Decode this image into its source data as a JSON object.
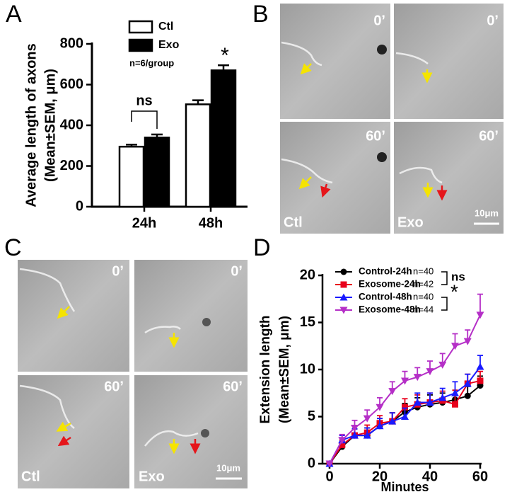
{
  "panel_letters": [
    "A",
    "B",
    "C",
    "D"
  ],
  "chart_data": [
    {
      "type": "bar",
      "y_label": [
        "Average length of axons",
        "(Mean±SEM, μm)"
      ],
      "categories": [
        "24h",
        "48h"
      ],
      "series": [
        {
          "name": "Ctl",
          "color": "#ffffff",
          "values": [
            295,
            503
          ],
          "errors": [
            10,
            20
          ]
        },
        {
          "name": "Exo",
          "color": "#000000",
          "values": [
            340,
            670
          ],
          "errors": [
            15,
            25
          ]
        }
      ],
      "legend_note": "n=6/group",
      "annotations": [
        "ns",
        "*"
      ],
      "ylim": [
        0,
        800
      ],
      "yticks": [
        0,
        200,
        400,
        600,
        800
      ]
    },
    {
      "type": "line",
      "x_label": "Minutes",
      "y_label": [
        "Extension length",
        "(Mean±SEM, μm)"
      ],
      "x": [
        0,
        5,
        10,
        15,
        20,
        25,
        30,
        35,
        40,
        45,
        50,
        55,
        60
      ],
      "series": [
        {
          "name": "Control-24h",
          "n_label": "n=40",
          "color": "#000000",
          "marker": "circle",
          "values": [
            0,
            1.8,
            3,
            3,
            4,
            4.5,
            5.5,
            6,
            6.3,
            6.5,
            6.8,
            7.2,
            8.3
          ],
          "errors": [
            0,
            0.5,
            0.7,
            0.8,
            0.8,
            0.9,
            0.9,
            1,
            1,
            1,
            1,
            1,
            1
          ]
        },
        {
          "name": "Exosome-24h",
          "n_label": "n=42",
          "color": "#e8001c",
          "marker": "square",
          "values": [
            0,
            2,
            3,
            3.3,
            4.3,
            4.5,
            6,
            6.3,
            6.5,
            6.7,
            6.3,
            8.5,
            8.8
          ],
          "errors": [
            0,
            0.5,
            0.7,
            0.8,
            0.8,
            0.9,
            0.9,
            1,
            1,
            1,
            1.5,
            1,
            1
          ]
        },
        {
          "name": "Control-48h",
          "n_label": "n=40",
          "color": "#1a1aff",
          "marker": "triangle-up",
          "values": [
            0,
            2.5,
            3,
            3,
            4,
            4.5,
            5,
            6.5,
            6.5,
            7,
            7.5,
            8.5,
            10.3
          ],
          "errors": [
            0,
            0.5,
            0.7,
            0.8,
            0.8,
            0.9,
            0.9,
            1,
            1,
            1,
            1.2,
            1,
            1.2
          ]
        },
        {
          "name": "Exosome-48h",
          "n_label": "n=44",
          "color": "#b52fc7",
          "marker": "triangle-down",
          "values": [
            0,
            2.5,
            3.8,
            4.8,
            6,
            7.7,
            8.8,
            9.2,
            9.8,
            10.5,
            12.5,
            13,
            15.8
          ],
          "errors": [
            0,
            0.6,
            0.8,
            0.9,
            1,
            1,
            1,
            1,
            1.1,
            1.2,
            1.3,
            1.2,
            2.2
          ]
        }
      ],
      "annotations": [
        "ns",
        "*"
      ],
      "xlim": [
        0,
        60
      ],
      "xticks": [
        0,
        20,
        40,
        60
      ],
      "ylim": [
        0,
        20
      ],
      "yticks": [
        0,
        5,
        10,
        15,
        20
      ]
    }
  ],
  "panel_b": {
    "time_labels": [
      "0’",
      "0’",
      "60’",
      "60’"
    ],
    "group_labels": [
      "Ctl",
      "Exo"
    ],
    "scale_bar": "10μm"
  },
  "panel_c": {
    "time_labels": [
      "0’",
      "0’",
      "60’",
      "60’"
    ],
    "group_labels": [
      "Ctl",
      "Exo"
    ],
    "scale_bar": "10μm"
  }
}
